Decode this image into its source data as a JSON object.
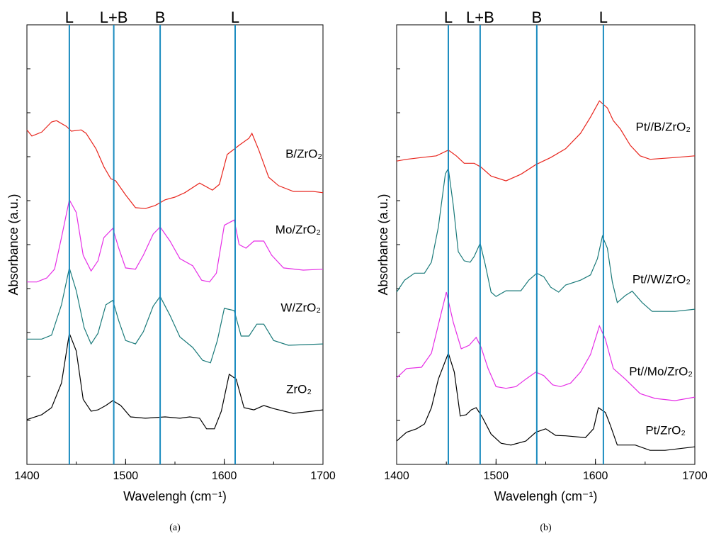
{
  "chart_data": [
    {
      "type": "line",
      "caption": "(a)",
      "xlabel": "Wavelengh (cm⁻¹)",
      "ylabel": "Absorbance (a.u.)",
      "xlim": [
        1400,
        1700
      ],
      "xticks": [
        1400,
        1500,
        1600,
        1700
      ],
      "ylim": [
        0,
        100
      ],
      "annotations": [
        {
          "text": "L",
          "x": 1443
        },
        {
          "text": "L+B",
          "x": 1488
        },
        {
          "text": "B",
          "x": 1535
        },
        {
          "text": "L",
          "x": 1611
        }
      ],
      "series": [
        {
          "name": "B/ZrO₂",
          "color": "#e8251d",
          "x": [
            1400,
            1405,
            1415,
            1425,
            1430,
            1440,
            1445,
            1455,
            1460,
            1470,
            1478,
            1485,
            1490,
            1500,
            1510,
            1520,
            1530,
            1540,
            1550,
            1560,
            1575,
            1588,
            1595,
            1603,
            1615,
            1625,
            1628,
            1635,
            1645,
            1655,
            1670,
            1690,
            1700
          ],
          "values": [
            76.1,
            74.7,
            75.6,
            77.9,
            78.2,
            76.9,
            75.8,
            76.1,
            75.3,
            71.8,
            67.7,
            65.0,
            64.5,
            61.3,
            58.4,
            58.2,
            58.9,
            60.2,
            60.8,
            61.8,
            64.0,
            62.4,
            63.7,
            70.5,
            72.6,
            74.2,
            75.3,
            71.5,
            65.3,
            63.4,
            62.1,
            62.1,
            61.8
          ]
        },
        {
          "name": "Mo/ZrO₂",
          "color": "#e62ee6",
          "x": [
            1400,
            1410,
            1420,
            1428,
            1435,
            1443,
            1450,
            1457,
            1465,
            1472,
            1478,
            1487,
            1493,
            1500,
            1510,
            1518,
            1528,
            1535,
            1545,
            1555,
            1568,
            1577,
            1585,
            1592,
            1600,
            1610,
            1615,
            1622,
            1630,
            1640,
            1648,
            1660,
            1680,
            1700
          ],
          "values": [
            41.5,
            41.5,
            42.4,
            44.4,
            51.6,
            60.2,
            57.3,
            47.6,
            44.0,
            46.3,
            51.6,
            53.7,
            49.2,
            44.7,
            44.4,
            47.6,
            52.4,
            54.0,
            50.8,
            46.8,
            45.2,
            41.9,
            41.5,
            43.5,
            54.4,
            55.6,
            50.0,
            49.2,
            50.8,
            50.8,
            47.6,
            44.7,
            44.2,
            44.4
          ]
        },
        {
          "name": "W/ZrO₂",
          "color": "#1a7a7a",
          "x": [
            1400,
            1415,
            1425,
            1435,
            1443,
            1450,
            1458,
            1465,
            1472,
            1480,
            1487,
            1493,
            1500,
            1510,
            1518,
            1528,
            1535,
            1545,
            1555,
            1568,
            1578,
            1586,
            1593,
            1600,
            1610,
            1617,
            1625,
            1633,
            1640,
            1650,
            1665,
            1700
          ],
          "values": [
            28.5,
            28.5,
            29.4,
            36.3,
            44.7,
            39.5,
            31.1,
            27.4,
            29.8,
            36.3,
            37.3,
            32.7,
            28.2,
            27.4,
            30.2,
            36.0,
            38.2,
            33.9,
            29.0,
            26.6,
            23.7,
            23.1,
            28.2,
            35.5,
            35.0,
            29.2,
            29.2,
            31.9,
            31.9,
            28.2,
            27.1,
            27.4
          ]
        },
        {
          "name": "ZrO₂",
          "color": "#000000",
          "x": [
            1400,
            1415,
            1425,
            1435,
            1443,
            1450,
            1457,
            1465,
            1472,
            1480,
            1487,
            1495,
            1505,
            1520,
            1540,
            1555,
            1565,
            1575,
            1582,
            1590,
            1597,
            1605,
            1612,
            1620,
            1630,
            1640,
            1650,
            1670,
            1700
          ],
          "values": [
            10.2,
            11.3,
            12.9,
            18.5,
            29.8,
            25.8,
            14.8,
            12.1,
            12.4,
            13.4,
            14.5,
            13.4,
            10.8,
            10.5,
            10.8,
            10.5,
            10.8,
            10.5,
            8.1,
            8.1,
            12.1,
            20.5,
            19.4,
            12.9,
            12.4,
            13.4,
            12.7,
            11.6,
            12.4
          ]
        }
      ]
    },
    {
      "type": "line",
      "caption": "(b)",
      "xlabel": "Wavelengh (cm⁻¹)",
      "ylabel": "Absorbance (a.u.)",
      "xlim": [
        1400,
        1700
      ],
      "xticks": [
        1400,
        1500,
        1600,
        1700
      ],
      "ylim": [
        0,
        100
      ],
      "annotations": [
        {
          "text": "L",
          "x": 1452
        },
        {
          "text": "L+B",
          "x": 1484
        },
        {
          "text": "B",
          "x": 1541
        },
        {
          "text": "L",
          "x": 1608
        }
      ],
      "series": [
        {
          "name": "Pt//B/ZrO₂",
          "color": "#e8251d",
          "x": [
            1400,
            1410,
            1425,
            1440,
            1452,
            1460,
            1468,
            1478,
            1485,
            1495,
            1510,
            1525,
            1540,
            1555,
            1570,
            1585,
            1595,
            1604,
            1612,
            1618,
            1625,
            1635,
            1645,
            1655,
            1680,
            1700
          ],
          "values": [
            69.0,
            69.4,
            69.8,
            70.2,
            71.5,
            70.2,
            68.5,
            68.5,
            67.6,
            65.6,
            64.5,
            66.0,
            68.2,
            69.8,
            71.8,
            75.3,
            79.0,
            82.7,
            81.1,
            78.2,
            76.3,
            72.6,
            70.2,
            69.4,
            69.8,
            70.2
          ]
        },
        {
          "name": "Pt//W/ZrO₂",
          "color": "#1a7a7a",
          "x": [
            1400,
            1408,
            1418,
            1428,
            1435,
            1442,
            1449,
            1452,
            1457,
            1462,
            1468,
            1474,
            1478,
            1484,
            1489,
            1495,
            1500,
            1510,
            1525,
            1533,
            1541,
            1548,
            1555,
            1563,
            1570,
            1585,
            1595,
            1602,
            1607,
            1612,
            1617,
            1622,
            1630,
            1637,
            1647,
            1657,
            1680,
            1700
          ],
          "values": [
            39.2,
            41.9,
            43.5,
            43.5,
            46.0,
            54.0,
            66.1,
            67.3,
            58.9,
            48.4,
            46.3,
            46.0,
            47.3,
            50.3,
            45.6,
            39.2,
            38.2,
            39.5,
            39.5,
            41.9,
            43.5,
            42.7,
            40.3,
            39.2,
            40.8,
            41.9,
            43.1,
            46.8,
            51.9,
            49.2,
            41.5,
            36.8,
            38.4,
            39.4,
            36.8,
            34.8,
            34.8,
            35.3
          ]
        },
        {
          "name": "Pt//Mo/ZrO₂",
          "color": "#e62ee6",
          "x": [
            1400,
            1410,
            1425,
            1435,
            1443,
            1450,
            1457,
            1465,
            1473,
            1480,
            1485,
            1492,
            1500,
            1510,
            1520,
            1530,
            1540,
            1548,
            1557,
            1565,
            1575,
            1585,
            1595,
            1604,
            1610,
            1618,
            1630,
            1645,
            1660,
            1680,
            1700
          ],
          "values": [
            19.7,
            21.8,
            22.1,
            25.3,
            32.7,
            39.2,
            32.3,
            26.3,
            27.1,
            28.9,
            26.6,
            21.8,
            17.7,
            17.3,
            17.7,
            19.4,
            21.0,
            20.2,
            18.1,
            17.7,
            18.5,
            21.0,
            25.0,
            31.5,
            28.5,
            21.8,
            19.4,
            16.1,
            15.0,
            14.5,
            15.3
          ]
        },
        {
          "name": "Pt/ZrO₂",
          "color": "#000000",
          "x": [
            1400,
            1410,
            1420,
            1428,
            1435,
            1442,
            1452,
            1458,
            1464,
            1470,
            1475,
            1480,
            1486,
            1495,
            1505,
            1515,
            1530,
            1540,
            1550,
            1560,
            1570,
            1590,
            1598,
            1603,
            1610,
            1615,
            1622,
            1640,
            1655,
            1670,
            1700
          ],
          "values": [
            5.3,
            7.3,
            8.1,
            9.2,
            12.9,
            19.4,
            25.3,
            21.0,
            11.0,
            11.3,
            12.4,
            12.9,
            10.8,
            6.9,
            4.8,
            4.4,
            5.3,
            7.3,
            8.1,
            6.6,
            6.5,
            6.1,
            8.1,
            12.9,
            11.8,
            8.9,
            4.4,
            4.4,
            3.2,
            3.2,
            4.0
          ]
        }
      ]
    }
  ]
}
